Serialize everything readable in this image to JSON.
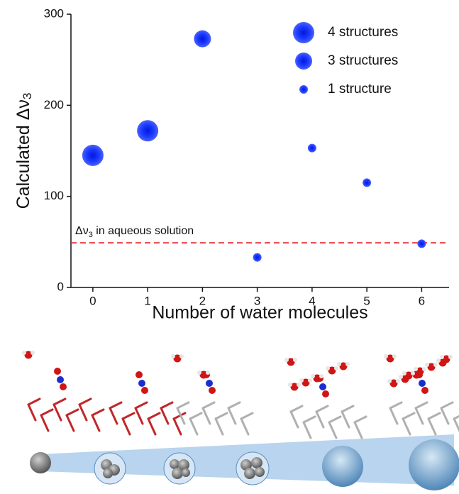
{
  "chart_data": {
    "type": "scatter",
    "x": [
      0,
      1,
      2,
      3,
      4,
      5,
      6
    ],
    "values": [
      145,
      172,
      273,
      33,
      153,
      115,
      48
    ],
    "sizes": [
      4,
      4,
      3,
      1,
      1,
      1,
      1
    ],
    "color": "#1f3cff",
    "xlabel": "Number of water molecules",
    "ylabel_parts": [
      "Calculated Δν",
      "3"
    ],
    "xlim": [
      -0.4,
      6.5
    ],
    "ylim": [
      0,
      300
    ],
    "xticks": [
      0,
      1,
      2,
      3,
      4,
      5,
      6
    ],
    "yticks": [
      0,
      100,
      200,
      300
    ],
    "legend": [
      {
        "label": "4 structures",
        "size": 4
      },
      {
        "label": "3 structures",
        "size": 3
      },
      {
        "label": "1 structure",
        "size": 1
      }
    ],
    "hline": {
      "value": 49,
      "color": "#e8262a",
      "label_parts": [
        "Δν",
        "3",
        " in aqueous solution"
      ]
    }
  }
}
